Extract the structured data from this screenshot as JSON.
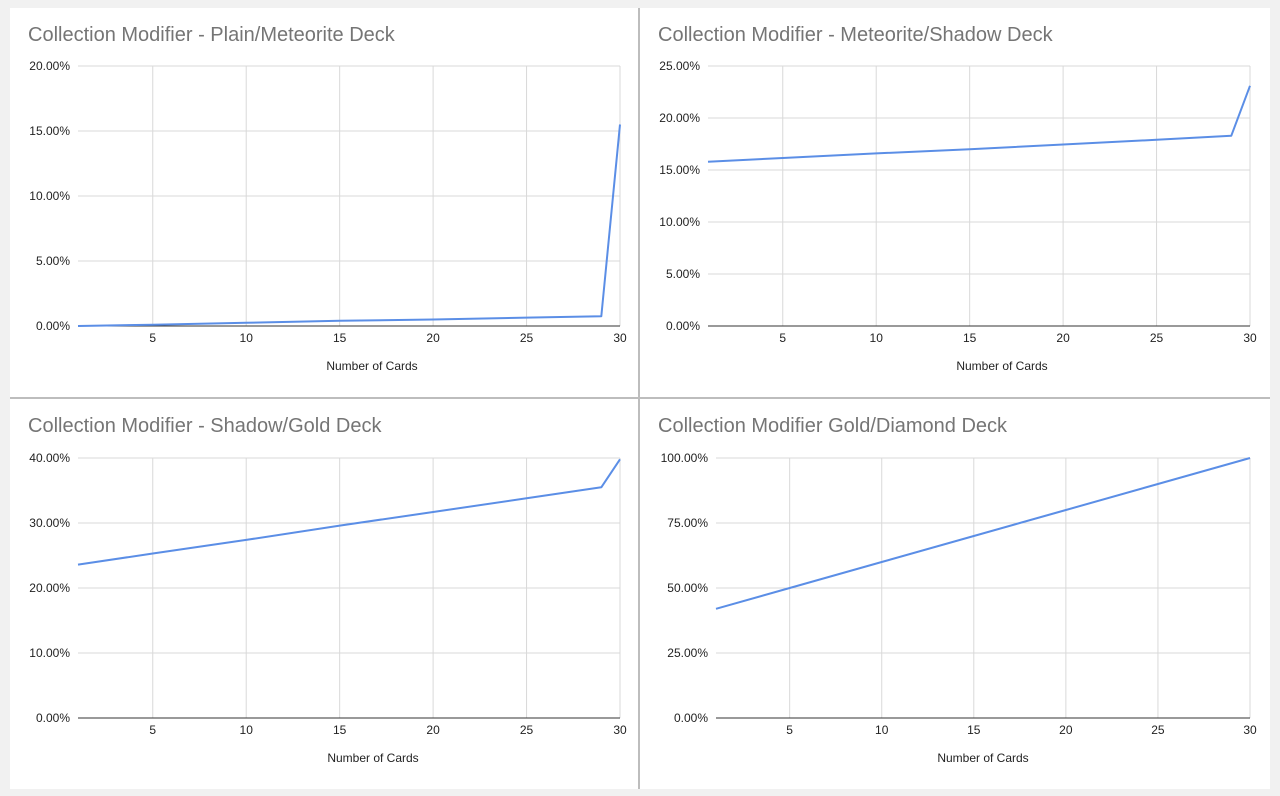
{
  "colors": {
    "series_line": "#5b8ee6"
  },
  "chart_data": [
    {
      "type": "line",
      "title": "Collection Modifier - Plain/Meteorite Deck",
      "xlabel": "Number of Cards",
      "ylabel": "",
      "xlim": [
        1,
        30
      ],
      "ylim": [
        0,
        20
      ],
      "x_ticks": [
        5,
        10,
        15,
        20,
        25,
        30
      ],
      "y_ticks": [
        "0.00%",
        "5.00%",
        "10.00%",
        "15.00%",
        "20.00%"
      ],
      "y_tick_values": [
        0,
        5,
        10,
        15,
        20
      ],
      "grid": true,
      "series": [
        {
          "x": [
            1,
            5,
            10,
            15,
            20,
            25,
            29,
            30
          ],
          "y": [
            0.0,
            0.1,
            0.25,
            0.4,
            0.5,
            0.65,
            0.75,
            15.5
          ]
        }
      ]
    },
    {
      "type": "line",
      "title": "Collection Modifier - Meteorite/Shadow Deck",
      "xlabel": "Number of Cards",
      "ylabel": "",
      "xlim": [
        1,
        30
      ],
      "ylim": [
        0,
        25
      ],
      "x_ticks": [
        5,
        10,
        15,
        20,
        25,
        30
      ],
      "y_ticks": [
        "0.00%",
        "5.00%",
        "10.00%",
        "15.00%",
        "20.00%",
        "25.00%"
      ],
      "y_tick_values": [
        0,
        5,
        10,
        15,
        20,
        25
      ],
      "grid": true,
      "series": [
        {
          "x": [
            1,
            5,
            10,
            15,
            20,
            25,
            29,
            30
          ],
          "y": [
            15.8,
            16.15,
            16.6,
            17.0,
            17.45,
            17.9,
            18.3,
            23.1
          ]
        }
      ]
    },
    {
      "type": "line",
      "title": "Collection Modifier - Shadow/Gold Deck",
      "xlabel": "Number of Cards",
      "ylabel": "",
      "xlim": [
        1,
        30
      ],
      "ylim": [
        0,
        40
      ],
      "x_ticks": [
        5,
        10,
        15,
        20,
        25,
        30
      ],
      "y_ticks": [
        "0.00%",
        "10.00%",
        "20.00%",
        "30.00%",
        "40.00%"
      ],
      "y_tick_values": [
        0,
        10,
        20,
        30,
        40
      ],
      "grid": true,
      "series": [
        {
          "x": [
            1,
            5,
            10,
            15,
            20,
            25,
            29,
            30
          ],
          "y": [
            23.6,
            25.3,
            27.4,
            29.6,
            31.7,
            33.8,
            35.5,
            39.8
          ]
        }
      ]
    },
    {
      "type": "line",
      "title": "Collection Modifier Gold/Diamond Deck",
      "xlabel": "Number of Cards",
      "ylabel": "",
      "xlim": [
        1,
        30
      ],
      "ylim": [
        0,
        100
      ],
      "x_ticks": [
        5,
        10,
        15,
        20,
        25,
        30
      ],
      "y_ticks": [
        "0.00%",
        "25.00%",
        "50.00%",
        "75.00%",
        "100.00%"
      ],
      "y_tick_values": [
        0,
        25,
        50,
        75,
        100
      ],
      "grid": true,
      "series": [
        {
          "x": [
            1,
            5,
            10,
            15,
            20,
            25,
            30
          ],
          "y": [
            42,
            50,
            60,
            70,
            80,
            90,
            100
          ]
        }
      ]
    }
  ]
}
